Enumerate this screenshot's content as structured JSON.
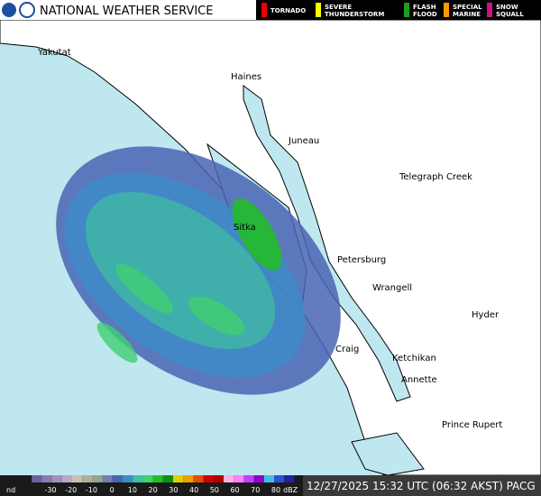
{
  "header": {
    "title": "NATIONAL WEATHER SERVICE",
    "warnings": [
      {
        "label": "TORNADO",
        "color": "#ee0000"
      },
      {
        "label": "SEVERE THUNDERSTORM",
        "color": "#ffff00"
      },
      {
        "label": "FLASH FLOOD",
        "color": "#1a9f1a"
      },
      {
        "label": "SPECIAL MARINE",
        "color": "#ff9900"
      },
      {
        "label": "SNOW SQUALL",
        "color": "#c71585"
      }
    ]
  },
  "map": {
    "cities": [
      "Yakutat",
      "Haines",
      "Juneau",
      "Telegraph Creek",
      "Sitka",
      "Petersburg",
      "Wrangell",
      "Hyder",
      "Craig",
      "Ketchikan",
      "Annette",
      "Prince Rupert"
    ]
  },
  "scale": {
    "nd_label": "nd",
    "ticks": [
      -30,
      -20,
      -10,
      0,
      10,
      20,
      30,
      40,
      50,
      60,
      70,
      80
    ],
    "unit": "dBZ",
    "colors": [
      "#1a1a1a",
      "#6f5f9f",
      "#8a7ab0",
      "#a090b8",
      "#b8a8c0",
      "#c8c0b0",
      "#b0b098",
      "#9aa090",
      "#7080b0",
      "#4a64b4",
      "#3c8cc8",
      "#40c0a0",
      "#40d070",
      "#20c020",
      "#109010",
      "#e0d000",
      "#f0a000",
      "#e05000",
      "#d00000",
      "#b00000",
      "#ffb0e0",
      "#ff80ff",
      "#c040ff",
      "#9000d0",
      "#40c0e0",
      "#3050d0",
      "#2020a0"
    ]
  },
  "footer": {
    "timestamp": "12/27/2025 15:32 UTC (06:32 AKST) PACG"
  }
}
